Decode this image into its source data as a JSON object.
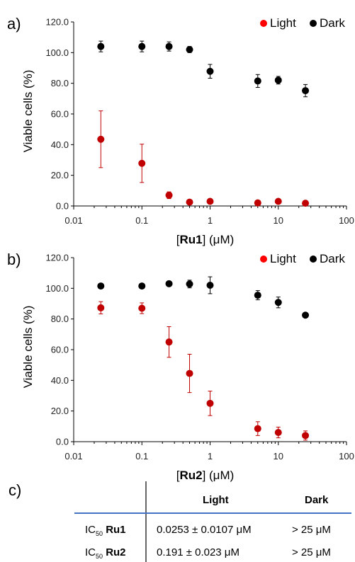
{
  "panels": [
    {
      "letter": "a)",
      "compound": "Ru1",
      "chart_data": {
        "type": "scatter",
        "x_scale": "log",
        "xlim": [
          0.01,
          100
        ],
        "ylim": [
          0,
          120
        ],
        "x_ticks": [
          "0.01",
          "0.1",
          "1",
          "10",
          "100"
        ],
        "y_ticks": [
          "0.0",
          "20.0",
          "40.0",
          "60.0",
          "80.0",
          "100.0",
          "120.0"
        ],
        "ylabel": "Viable cells (%)",
        "xlabel_prefix": "[",
        "xlabel_bold": "Ru1",
        "xlabel_suffix": "] (μM)",
        "legend_position": "top-right",
        "series": [
          {
            "name": "Light",
            "color": "#c00000",
            "legend_color": "#ff0000",
            "x": [
              0.025,
              0.1,
              0.25,
              0.5,
              1,
              5,
              10,
              25
            ],
            "y": [
              43.5,
              27.8,
              7.0,
              2.5,
              3.0,
              2.0,
              3.0,
              1.8
            ],
            "err": [
              18.5,
              12.5,
              2.2,
              0,
              0,
              0,
              0,
              0
            ]
          },
          {
            "name": "Dark",
            "color": "#000000",
            "legend_color": "#000000",
            "x": [
              0.025,
              0.1,
              0.25,
              0.5,
              1,
              5,
              10,
              25
            ],
            "y": [
              104,
              104,
              104,
              102,
              87.8,
              81.5,
              82,
              75.2
            ],
            "err": [
              3.5,
              3.5,
              3.0,
              2.0,
              4.5,
              4.2,
              2.5,
              4.0
            ]
          }
        ]
      }
    },
    {
      "letter": "b)",
      "compound": "Ru2",
      "chart_data": {
        "type": "scatter",
        "x_scale": "log",
        "xlim": [
          0.01,
          100
        ],
        "ylim": [
          0,
          120
        ],
        "x_ticks": [
          "0.01",
          "0.1",
          "1",
          "10",
          "100"
        ],
        "y_ticks": [
          "0.0",
          "20.0",
          "40.0",
          "60.0",
          "80.0",
          "100.0",
          "120.0"
        ],
        "ylabel": "Viable cells (%)",
        "xlabel_prefix": "[",
        "xlabel_bold": "Ru2",
        "xlabel_suffix": "] (μM)",
        "legend_position": "top-right",
        "series": [
          {
            "name": "Light",
            "color": "#c00000",
            "legend_color": "#ff0000",
            "x": [
              0.025,
              0.1,
              0.25,
              0.5,
              1,
              5,
              10,
              25
            ],
            "y": [
              87.3,
              87.0,
              65.0,
              44.5,
              25.0,
              8.5,
              6.0,
              4.0
            ],
            "err": [
              4.0,
              3.5,
              10.0,
              12.5,
              8.0,
              4.5,
              3.5,
              3.0
            ]
          },
          {
            "name": "Dark",
            "color": "#000000",
            "legend_color": "#000000",
            "x": [
              0.025,
              0.1,
              0.25,
              0.5,
              1,
              5,
              10,
              25
            ],
            "y": [
              101.5,
              101.5,
              103.0,
              102.8,
              102.0,
              95.5,
              90.8,
              82.5
            ],
            "err": [
              1.0,
              1.0,
              1.0,
              2.5,
              5.5,
              3.0,
              3.5,
              1.0
            ]
          }
        ]
      }
    }
  ],
  "table": {
    "letter": "c)",
    "col_light": "Light",
    "col_dark": "Dark",
    "rows": [
      {
        "ic": "IC",
        "sub": "50",
        "compound": "Ru1",
        "light": "0.0253 ± 0.0107 μM",
        "dark": "> 25 μM"
      },
      {
        "ic": "IC",
        "sub": "50",
        "compound": "Ru2",
        "light": "0.191 ± 0.023 μM",
        "dark": "> 25 μM"
      }
    ],
    "rule_color": "#4472c4"
  }
}
